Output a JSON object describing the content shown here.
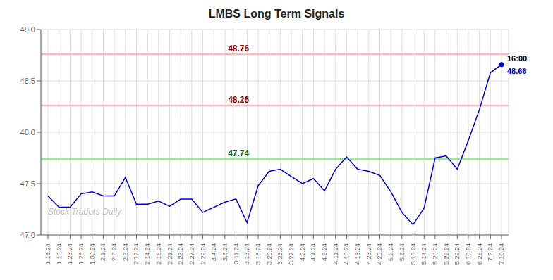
{
  "chart_data": {
    "type": "line",
    "title": "LMBS Long Term Signals",
    "watermark": "Stock Traders Daily",
    "color": "#0000cc",
    "categories": [
      "1.16.24",
      "1.18.24",
      "1.23.24",
      "1.25.24",
      "1.30.24",
      "2.1.24",
      "2.6.24",
      "2.8.24",
      "2.12.24",
      "2.14.24",
      "2.16.24",
      "2.21.24",
      "2.23.24",
      "2.27.24",
      "2.29.24",
      "3.4.24",
      "3.6.24",
      "3.11.24",
      "3.13.24",
      "3.18.24",
      "3.20.24",
      "3.25.24",
      "3.27.24",
      "4.2.24",
      "4.4.24",
      "4.9.24",
      "4.11.24",
      "4.16.24",
      "4.18.24",
      "4.23.24",
      "4.25.24",
      "5.2.24",
      "5.6.24",
      "5.10.24",
      "5.14.24",
      "5.20.24",
      "5.22.24",
      "5.29.24",
      "6.10.24",
      "6.25.24",
      "7.2.24",
      "7.10.24"
    ],
    "values": [
      47.38,
      47.27,
      47.27,
      47.4,
      47.42,
      47.38,
      47.38,
      47.56,
      47.3,
      47.3,
      47.33,
      47.28,
      47.35,
      47.35,
      47.22,
      47.27,
      47.32,
      47.35,
      47.12,
      47.48,
      47.62,
      47.64,
      47.57,
      47.5,
      47.55,
      47.43,
      47.64,
      47.76,
      47.64,
      47.62,
      47.58,
      47.42,
      47.22,
      47.1,
      47.26,
      47.75,
      47.77,
      47.64,
      47.92,
      48.22,
      48.58,
      48.66
    ],
    "hlines": [
      {
        "value": 47.74,
        "label": "47.74",
        "color": "#90EE90",
        "label_color": "#006400"
      },
      {
        "value": 48.76,
        "label": "48.76",
        "color": "#FFB6C1",
        "label_color": "#8B0000"
      },
      {
        "value": 48.26,
        "label": "48.26",
        "color": "#FFB6C1",
        "label_color": "#8B0000"
      }
    ],
    "annotations": [
      {
        "text": "16:00",
        "color": "#000000"
      },
      {
        "text": "48.66",
        "color": "#0000cc"
      }
    ],
    "ylim": [
      47.0,
      49.0
    ],
    "yticks": [
      {
        "value": 47,
        "label": "47.0"
      },
      {
        "value": 47.5,
        "label": "47.5"
      },
      {
        "value": 48,
        "label": "48.0"
      },
      {
        "value": 48.5,
        "label": "48.5"
      },
      {
        "value": 49,
        "label": "49.0"
      }
    ],
    "grid": true
  }
}
